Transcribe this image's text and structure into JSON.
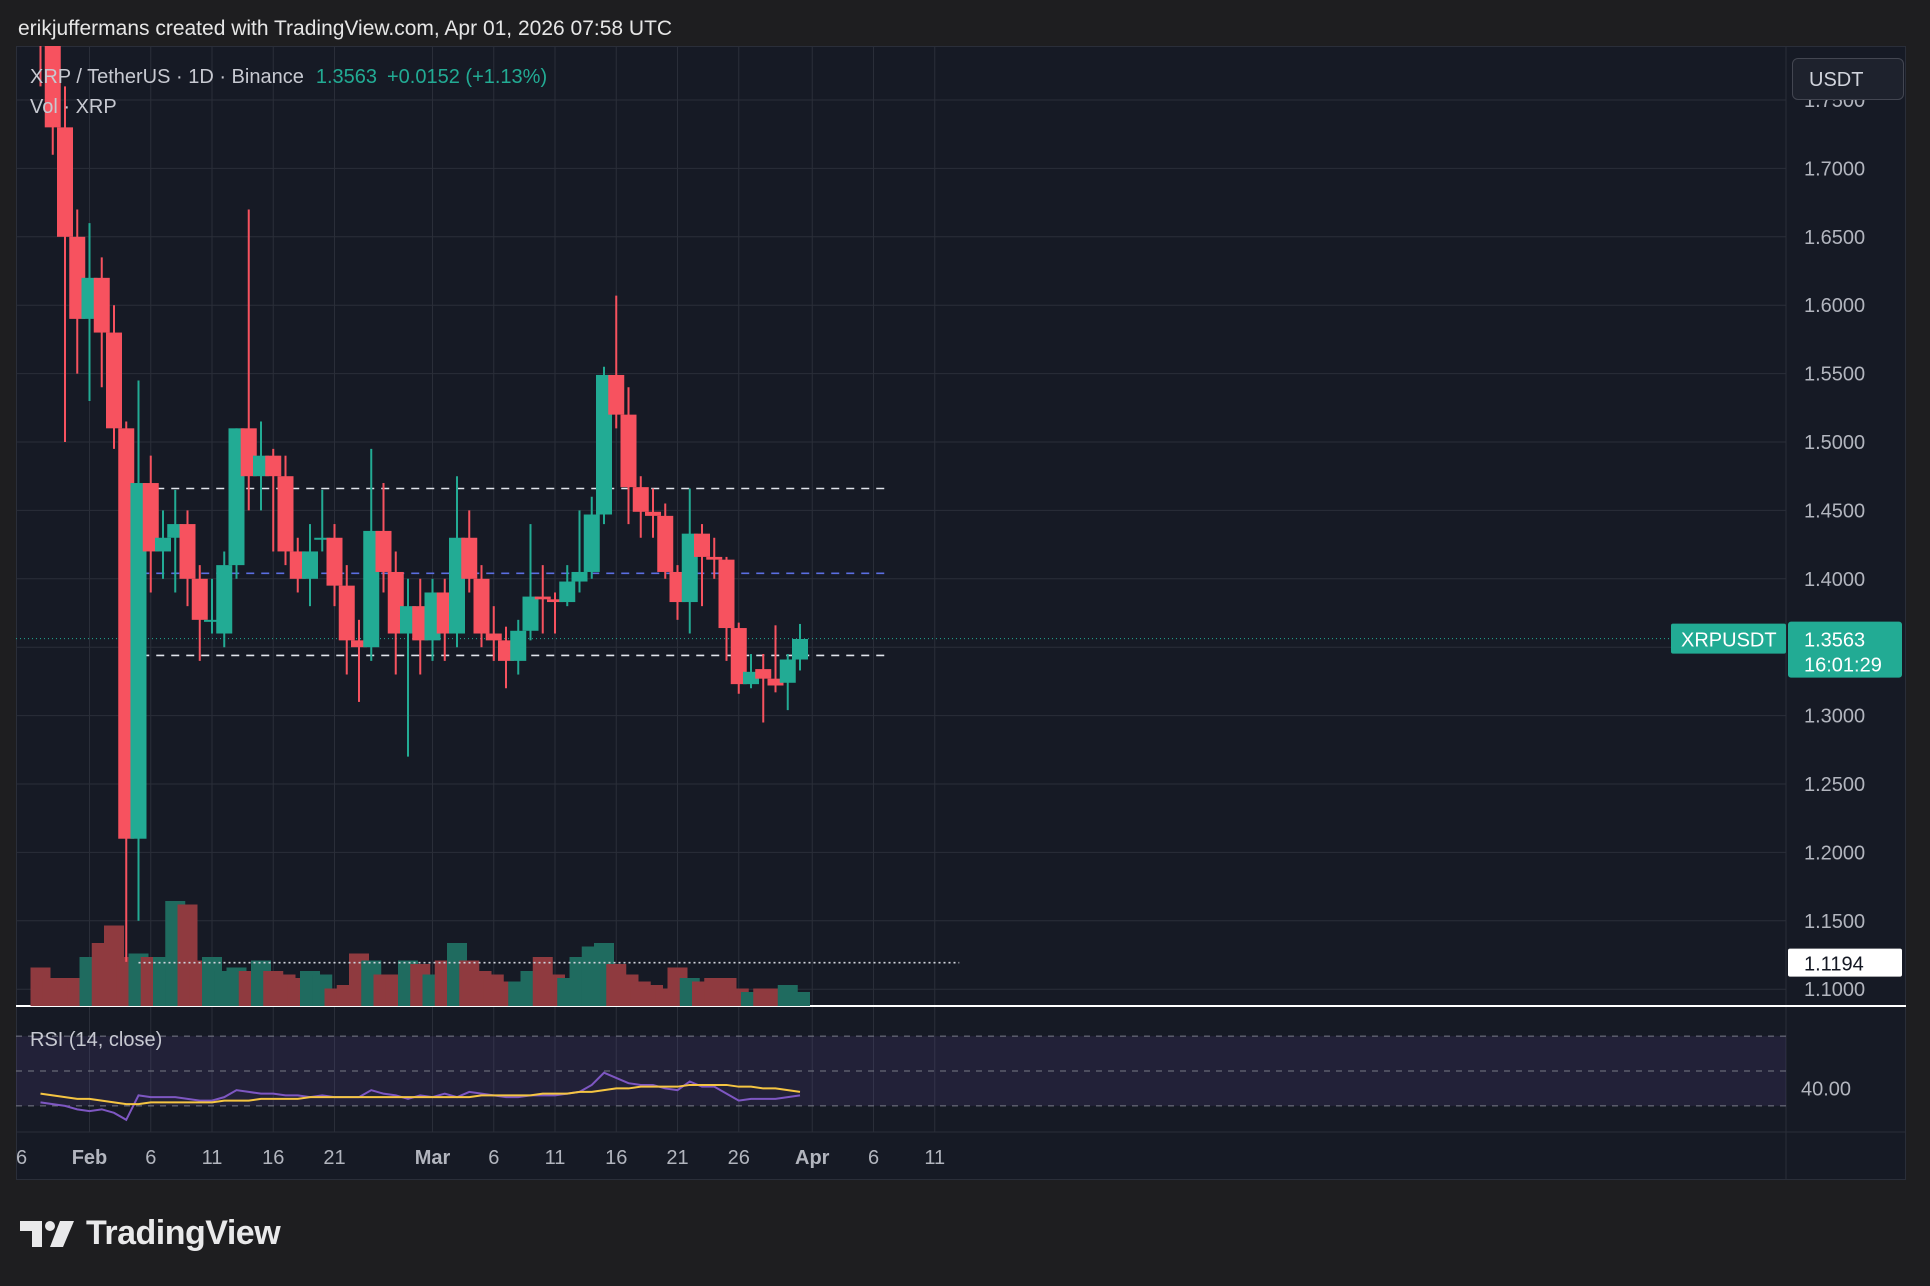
{
  "header": {
    "text": "erikjuffermans created with TradingView.com, Apr 01, 2026 07:58 UTC"
  },
  "legend": {
    "symbol": "XRP / TetherUS · 1D · Binance",
    "price": "1.3563",
    "change": "+0.0152 (+1.13%)",
    "volume_label": "Vol · XRP"
  },
  "currency_button": {
    "label": "USDT"
  },
  "rsi": {
    "label": "RSI (14, close)",
    "level_label": "40.00",
    "upper": 70,
    "lower": 30,
    "mid": 50
  },
  "price_tag": {
    "symbol": "XRPUSDT",
    "price": "1.3563",
    "countdown": "16:01:29"
  },
  "hline_tag": {
    "price": "1.1194"
  },
  "brand": {
    "name": "TradingView"
  },
  "colors": {
    "up": "#22ab94",
    "down": "#f7525f",
    "vol_up": "#1f6b5f",
    "vol_down": "#8f3a3f",
    "rsi": "#7e57c2",
    "rsi_ma": "#f5c542",
    "bg": "#161a25",
    "grid": "#2a2e39"
  },
  "chart_data": {
    "type": "candlestick",
    "symbol": "XRPUSDT",
    "interval": "1D",
    "exchange": "Binance",
    "y_axis": {
      "min": 1.08,
      "max": 1.78,
      "ticks": [
        "1.1000",
        "1.1500",
        "1.2000",
        "1.2500",
        "1.3000",
        "1.3500",
        "1.4000",
        "1.4500",
        "1.5000",
        "1.5500",
        "1.6000",
        "1.6500",
        "1.7000",
        "1.7500"
      ]
    },
    "x_axis": {
      "start_date": "2026-01-23",
      "end_date": "2026-04-13",
      "ticks": [
        {
          "label": "26",
          "date": "2026-01-26"
        },
        {
          "label": "Feb",
          "date": "2026-02-01"
        },
        {
          "label": "6",
          "date": "2026-02-06"
        },
        {
          "label": "11",
          "date": "2026-02-11"
        },
        {
          "label": "16",
          "date": "2026-02-16"
        },
        {
          "label": "21",
          "date": "2026-02-21"
        },
        {
          "label": "Mar",
          "date": "2026-03-01"
        },
        {
          "label": "6",
          "date": "2026-03-06"
        },
        {
          "label": "11",
          "date": "2026-03-11"
        },
        {
          "label": "16",
          "date": "2026-03-16"
        },
        {
          "label": "21",
          "date": "2026-03-21"
        },
        {
          "label": "26",
          "date": "2026-03-26"
        },
        {
          "label": "Apr",
          "date": "2026-04-01"
        },
        {
          "label": "6",
          "date": "2026-04-06"
        },
        {
          "label": "11",
          "date": "2026-04-11"
        }
      ]
    },
    "candles": [
      {
        "date": "2026-01-28",
        "open": 1.9,
        "high": 1.95,
        "low": 1.76,
        "close": 1.8
      },
      {
        "date": "2026-01-29",
        "open": 1.8,
        "high": 1.82,
        "low": 1.71,
        "close": 1.73
      },
      {
        "date": "2026-01-30",
        "open": 1.73,
        "high": 1.76,
        "low": 1.5,
        "close": 1.65
      },
      {
        "date": "2026-01-31",
        "open": 1.65,
        "high": 1.67,
        "low": 1.55,
        "close": 1.59
      },
      {
        "date": "2026-02-01",
        "open": 1.59,
        "high": 1.66,
        "low": 1.53,
        "close": 1.62
      },
      {
        "date": "2026-02-02",
        "open": 1.62,
        "high": 1.635,
        "low": 1.54,
        "close": 1.58
      },
      {
        "date": "2026-02-03",
        "open": 1.58,
        "high": 1.6,
        "low": 1.495,
        "close": 1.51
      },
      {
        "date": "2026-02-04",
        "open": 1.51,
        "high": 1.515,
        "low": 1.12,
        "close": 1.21
      },
      {
        "date": "2026-02-05",
        "open": 1.21,
        "high": 1.545,
        "low": 1.15,
        "close": 1.47
      },
      {
        "date": "2026-02-06",
        "open": 1.47,
        "high": 1.49,
        "low": 1.39,
        "close": 1.42
      },
      {
        "date": "2026-02-07",
        "open": 1.42,
        "high": 1.45,
        "low": 1.4,
        "close": 1.43
      },
      {
        "date": "2026-02-08",
        "open": 1.43,
        "high": 1.465,
        "low": 1.39,
        "close": 1.44
      },
      {
        "date": "2026-02-09",
        "open": 1.44,
        "high": 1.45,
        "low": 1.38,
        "close": 1.4
      },
      {
        "date": "2026-02-10",
        "open": 1.4,
        "high": 1.41,
        "low": 1.34,
        "close": 1.37
      },
      {
        "date": "2026-02-11",
        "open": 1.37,
        "high": 1.4,
        "low": 1.36,
        "close": 1.37
      },
      {
        "date": "2026-02-12",
        "open": 1.36,
        "high": 1.42,
        "low": 1.35,
        "close": 1.41
      },
      {
        "date": "2026-02-13",
        "open": 1.41,
        "high": 1.51,
        "low": 1.4,
        "close": 1.51
      },
      {
        "date": "2026-02-14",
        "open": 1.51,
        "high": 1.67,
        "low": 1.45,
        "close": 1.475
      },
      {
        "date": "2026-02-15",
        "open": 1.475,
        "high": 1.515,
        "low": 1.45,
        "close": 1.49
      },
      {
        "date": "2026-02-16",
        "open": 1.49,
        "high": 1.495,
        "low": 1.42,
        "close": 1.475
      },
      {
        "date": "2026-02-17",
        "open": 1.475,
        "high": 1.49,
        "low": 1.41,
        "close": 1.42
      },
      {
        "date": "2026-02-18",
        "open": 1.42,
        "high": 1.43,
        "low": 1.39,
        "close": 1.4
      },
      {
        "date": "2026-02-19",
        "open": 1.4,
        "high": 1.44,
        "low": 1.38,
        "close": 1.42
      },
      {
        "date": "2026-02-20",
        "open": 1.43,
        "high": 1.465,
        "low": 1.42,
        "close": 1.43
      },
      {
        "date": "2026-02-21",
        "open": 1.43,
        "high": 1.44,
        "low": 1.38,
        "close": 1.395
      },
      {
        "date": "2026-02-22",
        "open": 1.395,
        "high": 1.41,
        "low": 1.33,
        "close": 1.355
      },
      {
        "date": "2026-02-23",
        "open": 1.355,
        "high": 1.37,
        "low": 1.31,
        "close": 1.35
      },
      {
        "date": "2026-02-24",
        "open": 1.35,
        "high": 1.495,
        "low": 1.34,
        "close": 1.435
      },
      {
        "date": "2026-02-25",
        "open": 1.435,
        "high": 1.47,
        "low": 1.39,
        "close": 1.405
      },
      {
        "date": "2026-02-26",
        "open": 1.405,
        "high": 1.42,
        "low": 1.33,
        "close": 1.36
      },
      {
        "date": "2026-02-27",
        "open": 1.36,
        "high": 1.4,
        "low": 1.27,
        "close": 1.38
      },
      {
        "date": "2026-02-28",
        "open": 1.38,
        "high": 1.4,
        "low": 1.33,
        "close": 1.355
      },
      {
        "date": "2026-03-01",
        "open": 1.355,
        "high": 1.4,
        "low": 1.34,
        "close": 1.39
      },
      {
        "date": "2026-03-02",
        "open": 1.39,
        "high": 1.4,
        "low": 1.34,
        "close": 1.36
      },
      {
        "date": "2026-03-03",
        "open": 1.36,
        "high": 1.475,
        "low": 1.35,
        "close": 1.43
      },
      {
        "date": "2026-03-04",
        "open": 1.43,
        "high": 1.45,
        "low": 1.39,
        "close": 1.4
      },
      {
        "date": "2026-03-05",
        "open": 1.4,
        "high": 1.41,
        "low": 1.35,
        "close": 1.36
      },
      {
        "date": "2026-03-06",
        "open": 1.36,
        "high": 1.38,
        "low": 1.34,
        "close": 1.355
      },
      {
        "date": "2026-03-07",
        "open": 1.355,
        "high": 1.365,
        "low": 1.32,
        "close": 1.34
      },
      {
        "date": "2026-03-08",
        "open": 1.34,
        "high": 1.37,
        "low": 1.33,
        "close": 1.362
      },
      {
        "date": "2026-03-09",
        "open": 1.362,
        "high": 1.44,
        "low": 1.355,
        "close": 1.387
      },
      {
        "date": "2026-03-10",
        "open": 1.387,
        "high": 1.41,
        "low": 1.36,
        "close": 1.385
      },
      {
        "date": "2026-03-11",
        "open": 1.385,
        "high": 1.39,
        "low": 1.36,
        "close": 1.383
      },
      {
        "date": "2026-03-12",
        "open": 1.383,
        "high": 1.41,
        "low": 1.38,
        "close": 1.398
      },
      {
        "date": "2026-03-13",
        "open": 1.398,
        "high": 1.45,
        "low": 1.39,
        "close": 1.405
      },
      {
        "date": "2026-03-14",
        "open": 1.405,
        "high": 1.46,
        "low": 1.4,
        "close": 1.447
      },
      {
        "date": "2026-03-15",
        "open": 1.447,
        "high": 1.555,
        "low": 1.44,
        "close": 1.549
      },
      {
        "date": "2026-03-16",
        "open": 1.549,
        "high": 1.607,
        "low": 1.51,
        "close": 1.52
      },
      {
        "date": "2026-03-17",
        "open": 1.52,
        "high": 1.54,
        "low": 1.44,
        "close": 1.467
      },
      {
        "date": "2026-03-18",
        "open": 1.467,
        "high": 1.475,
        "low": 1.43,
        "close": 1.449
      },
      {
        "date": "2026-03-19",
        "open": 1.449,
        "high": 1.466,
        "low": 1.43,
        "close": 1.446
      },
      {
        "date": "2026-03-20",
        "open": 1.446,
        "high": 1.455,
        "low": 1.4,
        "close": 1.405
      },
      {
        "date": "2026-03-21",
        "open": 1.405,
        "high": 1.41,
        "low": 1.37,
        "close": 1.383
      },
      {
        "date": "2026-03-22",
        "open": 1.383,
        "high": 1.466,
        "low": 1.36,
        "close": 1.433
      },
      {
        "date": "2026-03-23",
        "open": 1.433,
        "high": 1.44,
        "low": 1.38,
        "close": 1.416
      },
      {
        "date": "2026-03-24",
        "open": 1.416,
        "high": 1.43,
        "low": 1.4,
        "close": 1.414
      },
      {
        "date": "2026-03-25",
        "open": 1.414,
        "high": 1.416,
        "low": 1.34,
        "close": 1.364
      },
      {
        "date": "2026-03-26",
        "open": 1.364,
        "high": 1.368,
        "low": 1.316,
        "close": 1.323
      },
      {
        "date": "2026-03-27",
        "open": 1.323,
        "high": 1.345,
        "low": 1.32,
        "close": 1.332
      },
      {
        "date": "2026-03-28",
        "open": 1.334,
        "high": 1.345,
        "low": 1.295,
        "close": 1.327
      },
      {
        "date": "2026-03-29",
        "open": 1.327,
        "high": 1.366,
        "low": 1.317,
        "close": 1.322
      },
      {
        "date": "2026-03-30",
        "open": 1.324,
        "high": 1.345,
        "low": 1.304,
        "close": 1.341
      },
      {
        "date": "2026-03-31",
        "open": 1.341,
        "high": 1.367,
        "low": 1.333,
        "close": 1.356
      }
    ],
    "volume": {
      "values": [
        11,
        8,
        8,
        8,
        14,
        18,
        23,
        14,
        15,
        14,
        14,
        30,
        29,
        13,
        14,
        10,
        11,
        10,
        13,
        10,
        9,
        8,
        10,
        9,
        5,
        6,
        15,
        13,
        9,
        9,
        13,
        12,
        9,
        13,
        18,
        13,
        10,
        9,
        7,
        7,
        10,
        14,
        9,
        8,
        14,
        17,
        18,
        12,
        9,
        7,
        6,
        5,
        11,
        8,
        7,
        8,
        8,
        5,
        4,
        5,
        5,
        6,
        4
      ]
    },
    "rsi_values": [
      32,
      31,
      30,
      28,
      27,
      28,
      26,
      22,
      36,
      35,
      35,
      35,
      34,
      33,
      33,
      35,
      39,
      38,
      37,
      37,
      36,
      36,
      35,
      36,
      35,
      35,
      35,
      39,
      37,
      36,
      34,
      36,
      35,
      37,
      35,
      38,
      37,
      36,
      35,
      35,
      36,
      36,
      36,
      37,
      38,
      42,
      49,
      46,
      43,
      42,
      42,
      40,
      39,
      44,
      41,
      41,
      37,
      33,
      34,
      34,
      34,
      35,
      36
    ],
    "rsi_ma_values": [
      37,
      36,
      35,
      34,
      34,
      33,
      32,
      31,
      31,
      32,
      32,
      32,
      32,
      32,
      32,
      33,
      33,
      33,
      34,
      34,
      34,
      34,
      35,
      35,
      35,
      35,
      35,
      35,
      35,
      35,
      35,
      35,
      35,
      35,
      35,
      35,
      36,
      36,
      36,
      36,
      36,
      37,
      37,
      37,
      38,
      38,
      39,
      40,
      40,
      41,
      41,
      41,
      41,
      42,
      42,
      42,
      42,
      41,
      41,
      40,
      40,
      39,
      38
    ],
    "horizontal_lines": [
      {
        "price": 1.466,
        "style": "dashed",
        "color": "#e0e3eb",
        "from": "2026-02-04",
        "to": "2026-04-07"
      },
      {
        "price": 1.404,
        "style": "dashed",
        "color": "#5b6ee1",
        "from": "2026-02-04",
        "to": "2026-04-07"
      },
      {
        "price": 1.344,
        "style": "dashed",
        "color": "#e0e3eb",
        "from": "2026-02-04",
        "to": "2026-04-07"
      },
      {
        "price": 1.1194,
        "style": "dotted",
        "color": "#d1d4dc",
        "from": "2026-02-05",
        "to": "2026-04-13"
      }
    ],
    "last_price": 1.3563
  }
}
